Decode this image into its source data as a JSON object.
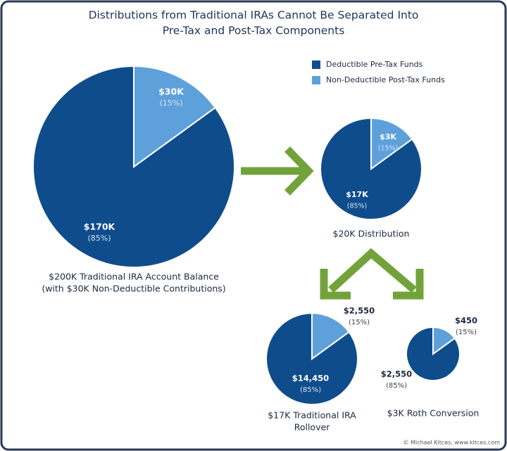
{
  "title": [
    "Distributions from Traditional IRAs Cannot Be Separated Into",
    "Pre-Tax and Post-Tax Components"
  ],
  "legend": [
    {
      "name": "Deductible Pre-Tax Funds",
      "color": "#0f4c8c"
    },
    {
      "name": "Non-Deductible Post-Tax Funds",
      "color": "#5ea1da"
    }
  ],
  "credit": "© Michael Kitces, www.kitces.com",
  "chart_data": [
    {
      "type": "pie",
      "caption": [
        "$200K Traditional IRA Account Balance",
        "(with $30K Non-Deductible Contributions)"
      ],
      "values": [
        170000,
        30000
      ],
      "value_labels": [
        "$170K",
        "$30K"
      ],
      "percent_labels": [
        "(85%)",
        "(15%)"
      ]
    },
    {
      "type": "pie",
      "caption": [
        "$20K Distribution"
      ],
      "values": [
        17000,
        3000
      ],
      "value_labels": [
        "$17K",
        "$3K"
      ],
      "percent_labels": [
        "(85%)",
        "(15%)"
      ]
    },
    {
      "type": "pie",
      "caption": [
        "$17K Traditional IRA",
        "Rollover"
      ],
      "values": [
        14450,
        2550
      ],
      "value_labels": [
        "$14,450",
        "$2,550"
      ],
      "percent_labels": [
        "(85%)",
        "(15%)"
      ]
    },
    {
      "type": "pie",
      "caption": [
        "$3K Roth Conversion"
      ],
      "values": [
        2550,
        450
      ],
      "value_labels": [
        "$2,550",
        "$450"
      ],
      "percent_labels": [
        "(85%)",
        "(15%)"
      ]
    }
  ]
}
